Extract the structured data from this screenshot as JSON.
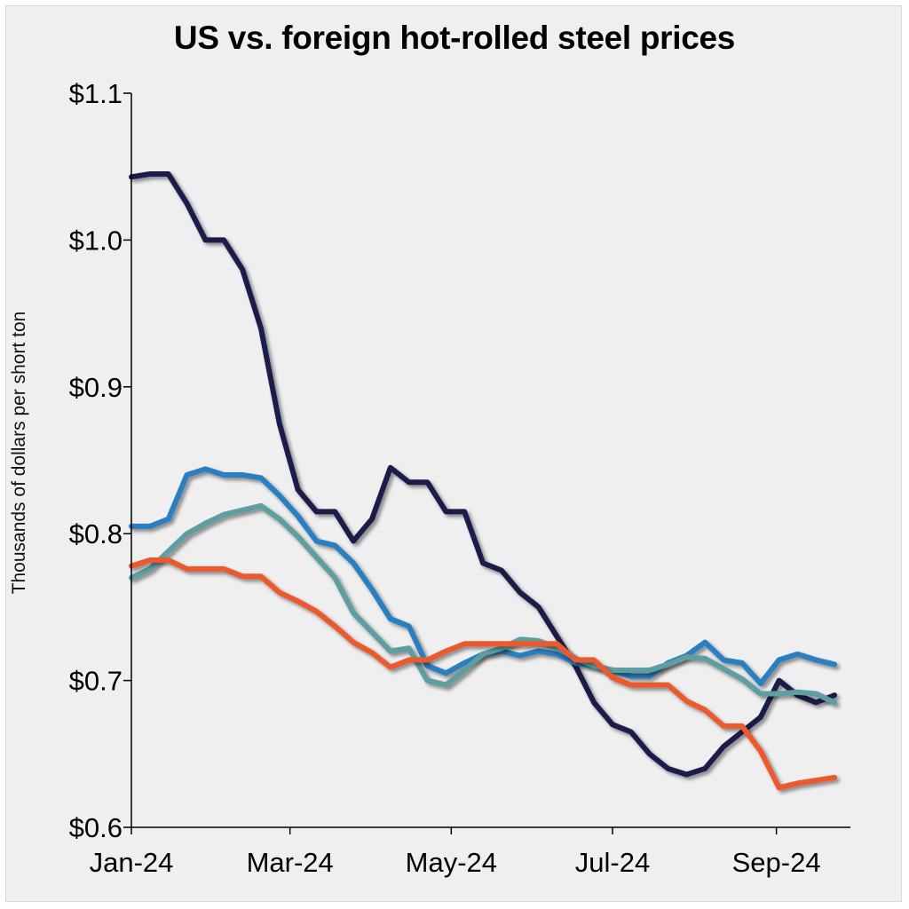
{
  "chart_data": {
    "type": "line",
    "title": "US vs. foreign hot-rolled steel prices",
    "xlabel": "",
    "ylabel": "Thousands of dollars per short ton",
    "ylim": [
      0.6,
      1.1
    ],
    "yticks": [
      0.6,
      0.7,
      0.8,
      0.9,
      1.0,
      1.1
    ],
    "ytick_labels": [
      "$0.6",
      "$0.7",
      "$0.8",
      "$0.9",
      "$1.0",
      "$1.1"
    ],
    "xlim": [
      "2024-01-01",
      "2024-09-29"
    ],
    "xticks": [
      "2024-01-01",
      "2024-03-01",
      "2024-05-01",
      "2024-07-01",
      "2024-09-01"
    ],
    "xtick_labels": [
      "Jan-24",
      "Mar-24",
      "May-24",
      "Jul-24",
      "Sep-24"
    ],
    "grid": false,
    "legend": "none",
    "x": [
      "2024-01-01",
      "2024-01-08",
      "2024-01-15",
      "2024-01-22",
      "2024-01-29",
      "2024-02-05",
      "2024-02-12",
      "2024-02-19",
      "2024-02-26",
      "2024-03-04",
      "2024-03-11",
      "2024-03-18",
      "2024-03-25",
      "2024-04-01",
      "2024-04-08",
      "2024-04-15",
      "2024-04-22",
      "2024-04-29",
      "2024-05-06",
      "2024-05-13",
      "2024-05-20",
      "2024-05-27",
      "2024-06-03",
      "2024-06-10",
      "2024-06-17",
      "2024-06-24",
      "2024-07-01",
      "2024-07-08",
      "2024-07-15",
      "2024-07-22",
      "2024-07-29",
      "2024-08-05",
      "2024-08-12",
      "2024-08-19",
      "2024-08-26",
      "2024-09-02",
      "2024-09-09",
      "2024-09-16",
      "2024-09-23"
    ],
    "series": [
      {
        "color": "#1b1f4b",
        "values": [
          1.043,
          1.045,
          1.045,
          1.025,
          1.0,
          1.0,
          0.98,
          0.94,
          0.875,
          0.83,
          0.815,
          0.815,
          0.795,
          0.81,
          0.845,
          0.835,
          0.835,
          0.815,
          0.815,
          0.78,
          0.775,
          0.76,
          0.75,
          0.73,
          0.71,
          0.685,
          0.67,
          0.665,
          0.65,
          0.64,
          0.636,
          0.64,
          0.655,
          0.665,
          0.675,
          0.7,
          0.69,
          0.685,
          0.69
        ]
      },
      {
        "color": "#2a7fc1",
        "values": [
          0.805,
          0.805,
          0.81,
          0.84,
          0.844,
          0.84,
          0.84,
          0.838,
          0.826,
          0.812,
          0.795,
          0.792,
          0.78,
          0.762,
          0.742,
          0.737,
          0.71,
          0.705,
          0.712,
          0.718,
          0.72,
          0.717,
          0.72,
          0.718,
          0.712,
          0.71,
          0.707,
          0.703,
          0.703,
          0.712,
          0.717,
          0.726,
          0.714,
          0.712,
          0.698,
          0.714,
          0.718,
          0.714,
          0.711
        ]
      },
      {
        "color": "#5e9ea0",
        "values": [
          0.77,
          0.776,
          0.788,
          0.8,
          0.807,
          0.813,
          0.816,
          0.819,
          0.81,
          0.798,
          0.784,
          0.77,
          0.746,
          0.733,
          0.72,
          0.722,
          0.7,
          0.697,
          0.707,
          0.718,
          0.722,
          0.728,
          0.727,
          0.722,
          0.715,
          0.71,
          0.707,
          0.707,
          0.707,
          0.711,
          0.716,
          0.715,
          0.708,
          0.701,
          0.691,
          0.691,
          0.692,
          0.691,
          0.685
        ]
      },
      {
        "color": "#ea5a2e",
        "values": [
          0.778,
          0.782,
          0.782,
          0.776,
          0.776,
          0.776,
          0.771,
          0.771,
          0.76,
          0.754,
          0.747,
          0.737,
          0.726,
          0.719,
          0.709,
          0.714,
          0.714,
          0.72,
          0.725,
          0.725,
          0.725,
          0.725,
          0.725,
          0.725,
          0.714,
          0.714,
          0.702,
          0.697,
          0.697,
          0.697,
          0.686,
          0.68,
          0.669,
          0.669,
          0.652,
          0.627,
          0.63,
          0.632,
          0.634
        ]
      }
    ]
  }
}
